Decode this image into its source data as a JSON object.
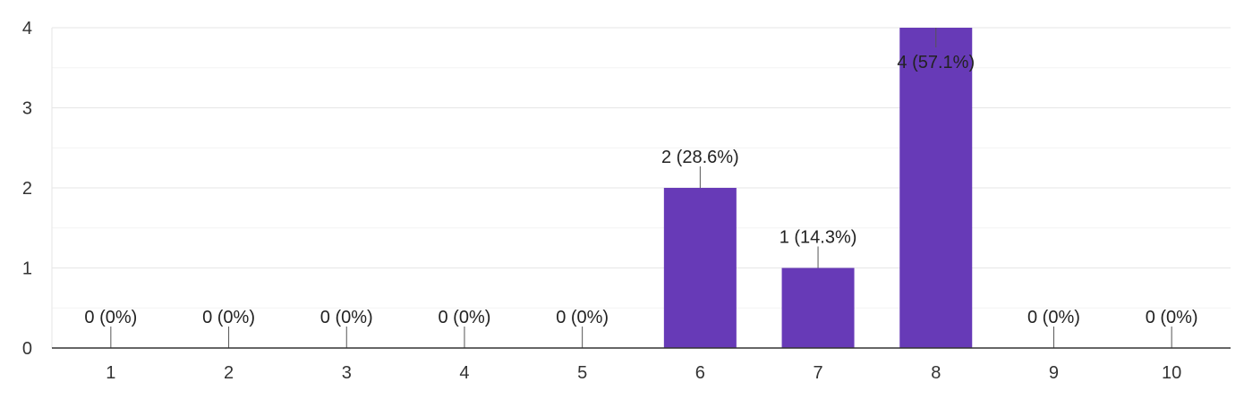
{
  "chart_data": {
    "type": "bar",
    "title": "",
    "xlabel": "",
    "ylabel": "",
    "categories": [
      "1",
      "2",
      "3",
      "4",
      "5",
      "6",
      "7",
      "8",
      "9",
      "10"
    ],
    "values": [
      0,
      0,
      0,
      0,
      0,
      2,
      1,
      4,
      0,
      0
    ],
    "data_labels": [
      "0 (0%)",
      "0 (0%)",
      "0 (0%)",
      "0 (0%)",
      "0 (0%)",
      "2 (28.6%)",
      "1 (14.3%)",
      "4 (57.1%)",
      "0 (0%)",
      "0 (0%)"
    ],
    "y_ticks": [
      "0",
      "1",
      "2",
      "3",
      "4"
    ],
    "ylim": [
      0,
      4
    ],
    "grid": true,
    "legend": "none",
    "bar_color": "#673ab7"
  }
}
